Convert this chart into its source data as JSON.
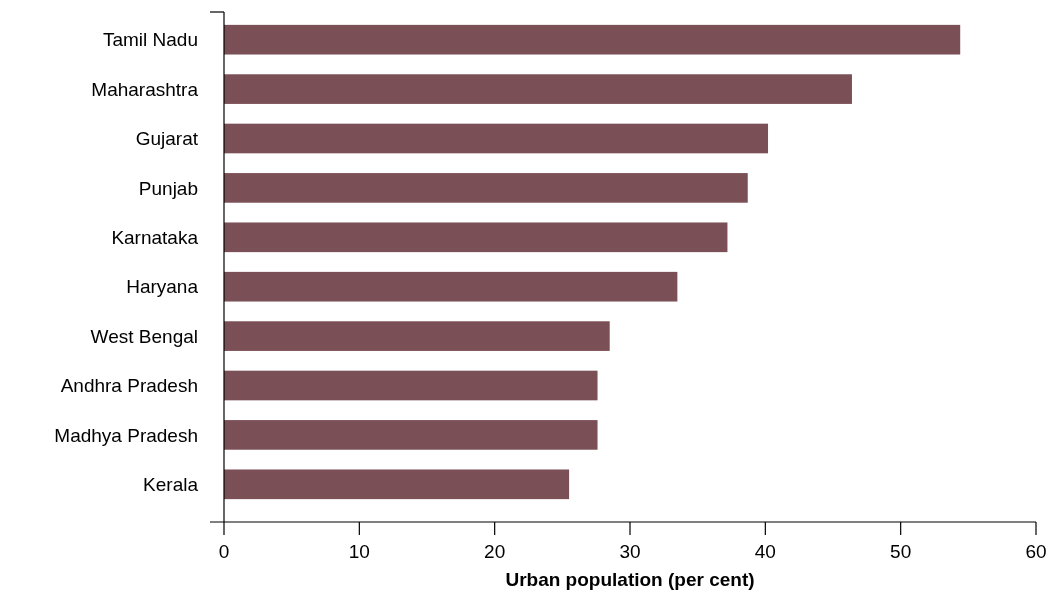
{
  "chart_data": {
    "type": "bar",
    "orientation": "horizontal",
    "xlabel": "Urban population (per cent)",
    "categories": [
      "Tamil Nadu",
      "Maharashtra",
      "Gujarat",
      "Punjab",
      "Karnataka",
      "Haryana",
      "West Bengal",
      "Andhra Pradesh",
      "Madhya Pradesh",
      "Kerala"
    ],
    "values": [
      54.4,
      46.4,
      40.2,
      38.7,
      37.2,
      33.5,
      28.5,
      27.6,
      27.6,
      25.5
    ],
    "color": "#7a4f55",
    "xlim": [
      0,
      60
    ],
    "xticks": [
      0,
      10,
      20,
      30,
      40,
      50,
      60
    ]
  }
}
